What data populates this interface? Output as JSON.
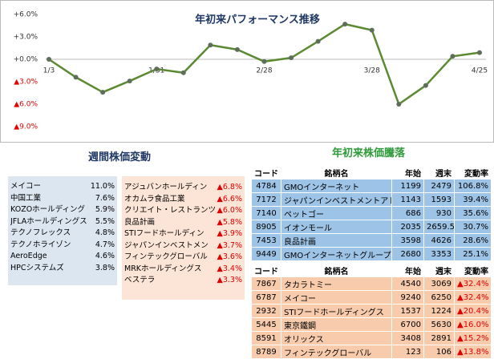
{
  "chart_data": {
    "type": "line",
    "title": "年初来パフォーマンス推移",
    "categories": [
      "1/3",
      null,
      null,
      null,
      "1/31",
      null,
      null,
      null,
      "2/28",
      null,
      null,
      null,
      "3/28",
      null,
      null,
      null,
      "4/25"
    ],
    "series": [
      {
        "color": "#5b8a32",
        "values": [
          0,
          -2.4,
          -4.4,
          -2.9,
          -1.3,
          -1.8,
          1.9,
          1.3,
          -0.3,
          0.2,
          2.4,
          4.7,
          3.9,
          -6.0,
          -3.5,
          0.4,
          0.9
        ]
      }
    ],
    "ylim": [
      -9,
      6
    ],
    "yticks": [
      {
        "value": 6,
        "label": "+6.0%"
      },
      {
        "value": 3,
        "label": "+3.0%"
      },
      {
        "value": 0,
        "label": "+0.0%"
      },
      {
        "value": -3,
        "label": "▲3.0%"
      },
      {
        "value": -6,
        "label": "▲6.0%"
      },
      {
        "value": -9,
        "label": "▲9.0%"
      }
    ]
  },
  "weekly": {
    "title": "週間株価変動",
    "gainers": [
      [
        "メイコー",
        "11.0%"
      ],
      [
        "中国工業",
        "7.6%"
      ],
      [
        "KOZOホールディング",
        "5.9%"
      ],
      [
        "JFLAホールディングス",
        "5.5%"
      ],
      [
        "テクノフレックス",
        "4.8%"
      ],
      [
        "テクノホライゾン",
        "4.7%"
      ],
      [
        "AeroEdge",
        "4.6%"
      ],
      [
        "HPCシステムズ",
        "3.8%"
      ]
    ],
    "losers": [
      [
        "アジュバンホールディン",
        "▲6.8%"
      ],
      [
        "オカムラ食品工業",
        "▲6.6%"
      ],
      [
        "クリエイト・レストランツ",
        "▲6.0%"
      ],
      [
        "良品計画",
        "▲5.8%"
      ],
      [
        "STIフードホールディン",
        "▲3.9%"
      ],
      [
        "ジャパンインベストメン",
        "▲3.7%"
      ],
      [
        "フィンテックグローバル",
        "▲3.6%"
      ],
      [
        "MRKホールディングス",
        "▲3.4%"
      ],
      [
        "ベステラ",
        "▲3.3%"
      ]
    ]
  },
  "ytd": {
    "title": "年初来株価騰落",
    "header": [
      "コード",
      "銘柄名",
      "年始",
      "週末",
      "変動率"
    ],
    "gainers": [
      [
        "4784",
        "GMOインターネット",
        "1199",
        "2479",
        "106.8%"
      ],
      [
        "7172",
        "ジャパンインベストメントアドバイ",
        "1143",
        "1593",
        "39.4%"
      ],
      [
        "7140",
        "ペットゴー",
        "686",
        "930",
        "35.6%"
      ],
      [
        "8905",
        "イオンモール",
        "2035",
        "2659.5",
        "30.7%"
      ],
      [
        "7453",
        "良品計画",
        "3598",
        "4626",
        "28.6%"
      ],
      [
        "9449",
        "GMOインターネットグループ",
        "2680",
        "3353",
        "25.1%"
      ]
    ],
    "losers": [
      [
        "7867",
        "タカラトミー",
        "4540",
        "3069",
        "▲32.4%"
      ],
      [
        "6787",
        "メイコー",
        "9240",
        "6250",
        "▲32.4%"
      ],
      [
        "2932",
        "STIフードホールディングス",
        "1537",
        "1224",
        "▲20.4%"
      ],
      [
        "5445",
        "東京鐵鋼",
        "6700",
        "5630",
        "▲16.0%"
      ],
      [
        "8591",
        "オリックス",
        "3408",
        "2891",
        "▲15.2%"
      ],
      [
        "8789",
        "フィンテックグローバル",
        "123",
        "106",
        "▲13.8%"
      ]
    ]
  }
}
